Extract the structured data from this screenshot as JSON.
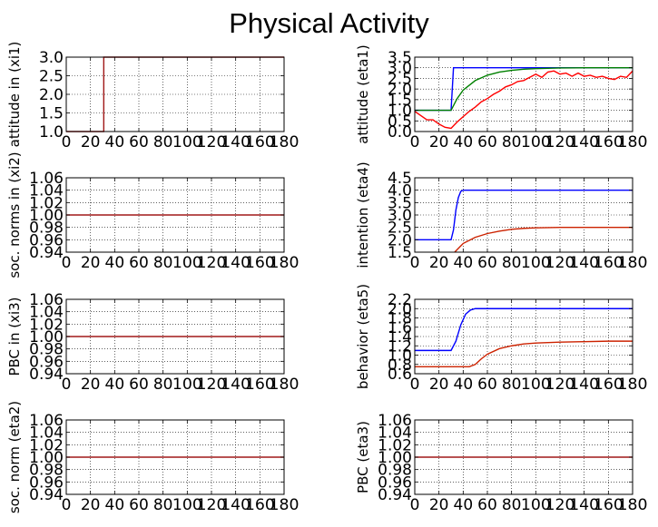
{
  "title": "Physical Activity",
  "colors": {
    "blue": "#0000ff",
    "green": "#008000",
    "red": "#ff0000",
    "darkred": "#a01818",
    "grid": "#000000",
    "frame": "#000000"
  },
  "chart_data": [
    {
      "type": "line",
      "ylabel": "attitude in (xi1)",
      "xlim": [
        0,
        180
      ],
      "ylim": [
        1.0,
        3.0
      ],
      "xticks": [
        0,
        20,
        40,
        60,
        80,
        100,
        120,
        140,
        160,
        180
      ],
      "yticks": [
        1.0,
        1.5,
        2.0,
        2.5,
        3.0
      ],
      "series": [
        {
          "color": "#a01818",
          "x": [
            0,
            31,
            31,
            180
          ],
          "y": [
            1.0,
            1.0,
            3.0,
            3.0
          ]
        }
      ]
    },
    {
      "type": "line",
      "ylabel": "attitude (eta1)",
      "xlim": [
        0,
        180
      ],
      "ylim": [
        0.0,
        3.5
      ],
      "xticks": [
        0,
        20,
        40,
        60,
        80,
        100,
        120,
        140,
        160,
        180
      ],
      "yticks": [
        0.0,
        0.5,
        1.0,
        1.5,
        2.0,
        2.5,
        3.0,
        3.5
      ],
      "series": [
        {
          "color": "#0000ff",
          "x": [
            0,
            30,
            32,
            180
          ],
          "y": [
            1.0,
            1.0,
            3.0,
            3.0
          ]
        },
        {
          "color": "#008000",
          "x": [
            0,
            30,
            35,
            40,
            50,
            60,
            70,
            80,
            90,
            100,
            120,
            140,
            160,
            180
          ],
          "y": [
            1.0,
            1.0,
            1.55,
            1.95,
            2.4,
            2.65,
            2.8,
            2.88,
            2.93,
            2.96,
            2.99,
            3.0,
            3.0,
            3.0
          ]
        },
        {
          "color": "#ff0000",
          "x": [
            0,
            5,
            10,
            15,
            20,
            25,
            30,
            35,
            40,
            45,
            50,
            55,
            60,
            65,
            70,
            75,
            80,
            85,
            90,
            95,
            100,
            105,
            110,
            115,
            120,
            125,
            130,
            135,
            140,
            145,
            150,
            155,
            160,
            165,
            170,
            175,
            180
          ],
          "y": [
            0.95,
            0.75,
            0.55,
            0.55,
            0.35,
            0.2,
            0.15,
            0.45,
            0.7,
            0.95,
            1.15,
            1.4,
            1.55,
            1.75,
            1.9,
            2.1,
            2.2,
            2.35,
            2.4,
            2.55,
            2.7,
            2.55,
            2.8,
            2.85,
            2.7,
            2.75,
            2.6,
            2.75,
            2.6,
            2.65,
            2.55,
            2.6,
            2.5,
            2.45,
            2.6,
            2.55,
            2.85
          ]
        }
      ]
    },
    {
      "type": "line",
      "ylabel": "soc. norms in (xi2)",
      "xlim": [
        0,
        180
      ],
      "ylim": [
        0.94,
        1.06
      ],
      "xticks": [
        0,
        20,
        40,
        60,
        80,
        100,
        120,
        140,
        160,
        180
      ],
      "yticks": [
        0.94,
        0.96,
        0.98,
        1.0,
        1.02,
        1.04,
        1.06
      ],
      "series": [
        {
          "color": "#a01818",
          "x": [
            0,
            180
          ],
          "y": [
            1.0,
            1.0
          ]
        }
      ]
    },
    {
      "type": "line",
      "ylabel": "intention (eta4)",
      "xlim": [
        0,
        180
      ],
      "ylim": [
        1.5,
        4.5
      ],
      "xticks": [
        0,
        20,
        40,
        60,
        80,
        100,
        120,
        140,
        160,
        180
      ],
      "yticks": [
        1.5,
        2.0,
        2.5,
        3.0,
        3.5,
        4.0,
        4.5
      ],
      "series": [
        {
          "color": "#0000ff",
          "x": [
            0,
            30,
            32,
            34,
            36,
            38,
            40,
            45,
            50,
            180
          ],
          "y": [
            2.0,
            2.0,
            2.4,
            3.2,
            3.7,
            3.95,
            4.0,
            4.0,
            4.0,
            4.0
          ]
        },
        {
          "color": "#cc2200",
          "x": [
            33,
            40,
            50,
            60,
            70,
            80,
            90,
            100,
            120,
            140,
            160,
            180
          ],
          "y": [
            1.5,
            1.85,
            2.1,
            2.25,
            2.35,
            2.42,
            2.46,
            2.48,
            2.5,
            2.5,
            2.5,
            2.5
          ]
        }
      ]
    },
    {
      "type": "line",
      "ylabel": "PBC in (xi3)",
      "xlim": [
        0,
        180
      ],
      "ylim": [
        0.94,
        1.06
      ],
      "xticks": [
        0,
        20,
        40,
        60,
        80,
        100,
        120,
        140,
        160,
        180
      ],
      "yticks": [
        0.94,
        0.96,
        0.98,
        1.0,
        1.02,
        1.04,
        1.06
      ],
      "series": [
        {
          "color": "#a01818",
          "x": [
            0,
            180
          ],
          "y": [
            1.0,
            1.0
          ]
        }
      ]
    },
    {
      "type": "line",
      "ylabel": "behavior (eta5)",
      "xlim": [
        0,
        180
      ],
      "ylim": [
        0.6,
        2.2
      ],
      "xticks": [
        0,
        20,
        40,
        60,
        80,
        100,
        120,
        140,
        160,
        180
      ],
      "yticks": [
        0.6,
        0.8,
        1.0,
        1.2,
        1.4,
        1.6,
        1.8,
        2.0,
        2.2
      ],
      "series": [
        {
          "color": "#0000ff",
          "x": [
            0,
            30,
            34,
            38,
            42,
            46,
            50,
            60,
            180
          ],
          "y": [
            1.1,
            1.1,
            1.3,
            1.65,
            1.88,
            1.97,
            2.0,
            2.0,
            2.0
          ]
        },
        {
          "color": "#cc2200",
          "x": [
            0,
            45,
            50,
            55,
            60,
            70,
            80,
            90,
            100,
            120,
            140,
            160,
            180
          ],
          "y": [
            0.75,
            0.75,
            0.8,
            0.92,
            1.02,
            1.14,
            1.2,
            1.24,
            1.26,
            1.28,
            1.29,
            1.3,
            1.3
          ]
        }
      ]
    },
    {
      "type": "line",
      "ylabel": "soc. norm (eta2)",
      "xlim": [
        0,
        180
      ],
      "ylim": [
        0.94,
        1.06
      ],
      "xticks": [
        0,
        20,
        40,
        60,
        80,
        100,
        120,
        140,
        160,
        180
      ],
      "yticks": [
        0.94,
        0.96,
        0.98,
        1.0,
        1.02,
        1.04,
        1.06
      ],
      "series": [
        {
          "color": "#a01818",
          "x": [
            0,
            180
          ],
          "y": [
            1.0,
            1.0
          ]
        }
      ]
    },
    {
      "type": "line",
      "ylabel": "PBC (eta3)",
      "xlim": [
        0,
        180
      ],
      "ylim": [
        0.94,
        1.06
      ],
      "xticks": [
        0,
        20,
        40,
        60,
        80,
        100,
        120,
        140,
        160,
        180
      ],
      "yticks": [
        0.94,
        0.96,
        0.98,
        1.0,
        1.02,
        1.04,
        1.06
      ],
      "series": [
        {
          "color": "#a01818",
          "x": [
            0,
            180
          ],
          "y": [
            1.0,
            1.0
          ]
        }
      ]
    }
  ]
}
